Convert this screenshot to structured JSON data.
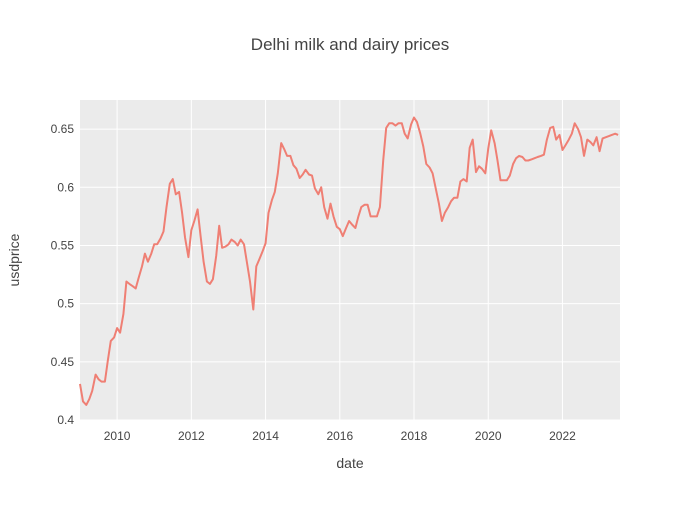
{
  "chart_data": {
    "type": "line",
    "title": "Delhi milk and dairy prices",
    "xlabel": "date",
    "ylabel": "usdprice",
    "grid": true,
    "legend": "none",
    "xlim": [
      2009.0,
      2023.55
    ],
    "ylim": [
      0.4,
      0.675
    ],
    "x_ticks": [
      {
        "value": 2010,
        "label": "2010"
      },
      {
        "value": 2012,
        "label": "2012"
      },
      {
        "value": 2014,
        "label": "2014"
      },
      {
        "value": 2016,
        "label": "2016"
      },
      {
        "value": 2018,
        "label": "2018"
      },
      {
        "value": 2020,
        "label": "2020"
      },
      {
        "value": 2022,
        "label": "2022"
      }
    ],
    "y_ticks": [
      {
        "value": 0.4,
        "label": "0.4"
      },
      {
        "value": 0.45,
        "label": "0.45"
      },
      {
        "value": 0.5,
        "label": "0.5"
      },
      {
        "value": 0.55,
        "label": "0.55"
      },
      {
        "value": 0.6,
        "label": "0.6"
      },
      {
        "value": 0.65,
        "label": "0.65"
      }
    ],
    "colors": {
      "line": "#EF7F74",
      "plot_bg": "#EBEBEB",
      "grid": "#FFFFFF",
      "text": "#444444"
    },
    "series": [
      {
        "x": [
          2009.0,
          2009.08,
          2009.17,
          2009.25,
          2009.33,
          2009.42,
          2009.5,
          2009.58,
          2009.67,
          2009.75,
          2009.83,
          2009.92,
          2010.0,
          2010.08,
          2010.17,
          2010.25,
          2010.33,
          2010.42,
          2010.5,
          2010.58,
          2010.67,
          2010.75,
          2010.83,
          2010.92,
          2011.0,
          2011.08,
          2011.17,
          2011.25,
          2011.33,
          2011.42,
          2011.5,
          2011.58,
          2011.67,
          2011.75,
          2011.83,
          2011.92,
          2012.0,
          2012.08,
          2012.17,
          2012.25,
          2012.33,
          2012.42,
          2012.5,
          2012.58,
          2012.67,
          2012.75,
          2012.83,
          2012.92,
          2013.0,
          2013.08,
          2013.17,
          2013.25,
          2013.33,
          2013.42,
          2013.5,
          2013.58,
          2013.67,
          2013.75,
          2013.83,
          2013.92,
          2014.0,
          2014.08,
          2014.17,
          2014.25,
          2014.33,
          2014.42,
          2014.5,
          2014.58,
          2014.67,
          2014.75,
          2014.83,
          2014.92,
          2015.0,
          2015.08,
          2015.17,
          2015.25,
          2015.33,
          2015.42,
          2015.5,
          2015.58,
          2015.67,
          2015.75,
          2015.83,
          2015.92,
          2016.0,
          2016.08,
          2016.17,
          2016.25,
          2016.33,
          2016.42,
          2016.5,
          2016.58,
          2016.67,
          2016.75,
          2016.83,
          2016.92,
          2017.0,
          2017.08,
          2017.17,
          2017.25,
          2017.33,
          2017.42,
          2017.5,
          2017.58,
          2017.67,
          2017.75,
          2017.83,
          2017.92,
          2018.0,
          2018.08,
          2018.17,
          2018.25,
          2018.33,
          2018.42,
          2018.5,
          2018.58,
          2018.67,
          2018.75,
          2018.83,
          2018.92,
          2019.0,
          2019.08,
          2019.17,
          2019.25,
          2019.33,
          2019.42,
          2019.5,
          2019.58,
          2019.67,
          2019.75,
          2019.83,
          2019.92,
          2020.0,
          2020.08,
          2020.17,
          2020.25,
          2020.33,
          2020.42,
          2020.5,
          2020.58,
          2020.67,
          2020.75,
          2020.83,
          2020.92,
          2021.0,
          2021.08,
          2021.17,
          2021.25,
          2021.33,
          2021.42,
          2021.5,
          2021.58,
          2021.67,
          2021.75,
          2021.83,
          2021.92,
          2022.0,
          2022.08,
          2022.17,
          2022.25,
          2022.33,
          2022.42,
          2022.5,
          2022.58,
          2022.67,
          2022.75,
          2022.83,
          2022.92,
          2023.0,
          2023.08,
          2023.17,
          2023.25,
          2023.33,
          2023.42,
          2023.5
        ],
        "y": [
          0.431,
          0.416,
          0.413,
          0.418,
          0.425,
          0.439,
          0.435,
          0.433,
          0.433,
          0.451,
          0.468,
          0.471,
          0.479,
          0.475,
          0.491,
          0.519,
          0.517,
          0.515,
          0.513,
          0.522,
          0.532,
          0.543,
          0.536,
          0.543,
          0.551,
          0.551,
          0.556,
          0.562,
          0.583,
          0.603,
          0.607,
          0.594,
          0.596,
          0.578,
          0.557,
          0.54,
          0.563,
          0.571,
          0.581,
          0.558,
          0.536,
          0.519,
          0.517,
          0.521,
          0.541,
          0.567,
          0.548,
          0.549,
          0.551,
          0.555,
          0.553,
          0.55,
          0.555,
          0.551,
          0.535,
          0.519,
          0.495,
          0.532,
          0.538,
          0.545,
          0.552,
          0.578,
          0.589,
          0.596,
          0.612,
          0.638,
          0.633,
          0.627,
          0.627,
          0.619,
          0.616,
          0.608,
          0.611,
          0.615,
          0.611,
          0.61,
          0.599,
          0.594,
          0.6,
          0.583,
          0.573,
          0.586,
          0.575,
          0.566,
          0.564,
          0.558,
          0.565,
          0.571,
          0.568,
          0.565,
          0.575,
          0.583,
          0.585,
          0.585,
          0.575,
          0.575,
          0.575,
          0.583,
          0.623,
          0.651,
          0.655,
          0.655,
          0.653,
          0.655,
          0.655,
          0.646,
          0.642,
          0.654,
          0.66,
          0.656,
          0.646,
          0.635,
          0.62,
          0.617,
          0.612,
          0.6,
          0.586,
          0.571,
          0.578,
          0.583,
          0.588,
          0.591,
          0.591,
          0.605,
          0.607,
          0.605,
          0.634,
          0.641,
          0.613,
          0.618,
          0.616,
          0.612,
          0.633,
          0.649,
          0.638,
          0.623,
          0.606,
          0.606,
          0.606,
          0.61,
          0.62,
          0.625,
          0.627,
          0.626,
          0.623,
          0.623,
          0.624,
          0.625,
          0.626,
          0.627,
          0.628,
          0.641,
          0.651,
          0.652,
          0.641,
          0.645,
          0.632,
          0.636,
          0.641,
          0.646,
          0.655,
          0.65,
          0.643,
          0.627,
          0.641,
          0.639,
          0.636,
          0.643,
          0.631,
          0.642,
          0.643,
          0.644,
          0.645,
          0.646,
          0.645
        ]
      }
    ]
  }
}
